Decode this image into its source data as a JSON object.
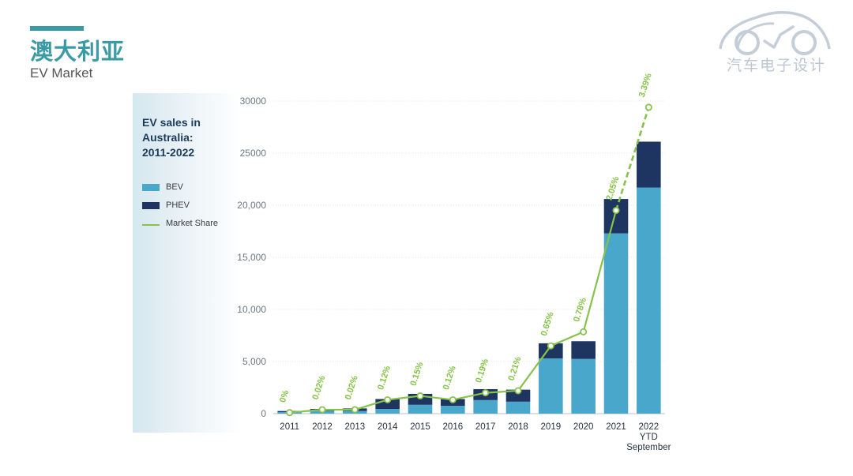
{
  "slide": {
    "title": "澳大利亚",
    "subtitle": "EV Market",
    "brand": "汽车电子设计",
    "accent_color": "#3a9aa6"
  },
  "chart_data": {
    "type": "bar",
    "stacked": true,
    "title": "EV sales in Australia: 2011-2022",
    "title_lines": [
      "EV sales in",
      "Australia:",
      "2011-2022"
    ],
    "categories": [
      "2011",
      "2012",
      "2013",
      "2014",
      "2015",
      "2016",
      "2017",
      "2018",
      "2019",
      "2020",
      "2021",
      "2022 YTD September"
    ],
    "category_lines": [
      [
        "2011"
      ],
      [
        "2012"
      ],
      [
        "2013"
      ],
      [
        "2014"
      ],
      [
        "2015"
      ],
      [
        "2016"
      ],
      [
        "2017"
      ],
      [
        "2018"
      ],
      [
        "2019"
      ],
      [
        "2020"
      ],
      [
        "2021"
      ],
      [
        "2022",
        "YTD",
        "September"
      ]
    ],
    "series": [
      {
        "name": "BEV",
        "color": "#4aa7cc",
        "values": [
          150,
          250,
          250,
          450,
          850,
          750,
          1300,
          1150,
          5300,
          5250,
          17300,
          21700
        ]
      },
      {
        "name": "PHEV",
        "color": "#1e3461",
        "values": [
          100,
          200,
          250,
          950,
          1050,
          650,
          1050,
          1150,
          1450,
          1700,
          3300,
          4400
        ]
      }
    ],
    "line_series": {
      "name": "Market Share",
      "color": "#86c34a",
      "values": [
        100,
        380,
        380,
        1330,
        1700,
        1330,
        2000,
        2200,
        6500,
        7850,
        19500,
        29400
      ],
      "labels": [
        "0%",
        "0.02%",
        "0.02%",
        "0.12%",
        "0.15%",
        "0.12%",
        "0.19%",
        "0.21%",
        "0.65%",
        "0.78%",
        "2.05%",
        "3.39%"
      ],
      "dashed_last_segment": true
    },
    "legend": [
      {
        "label": "BEV",
        "color": "#4aa7cc",
        "kind": "swatch"
      },
      {
        "label": "PHEV",
        "color": "#1e3461",
        "kind": "swatch"
      },
      {
        "label": "Market Share",
        "color": "#86c34a",
        "kind": "line"
      }
    ],
    "y_ticks": [
      "0",
      "5,000",
      "10,000",
      "15,000",
      "20,000",
      "25000",
      "30000"
    ],
    "ylim": [
      0,
      30000
    ],
    "grid": true,
    "legend_position": "left"
  }
}
